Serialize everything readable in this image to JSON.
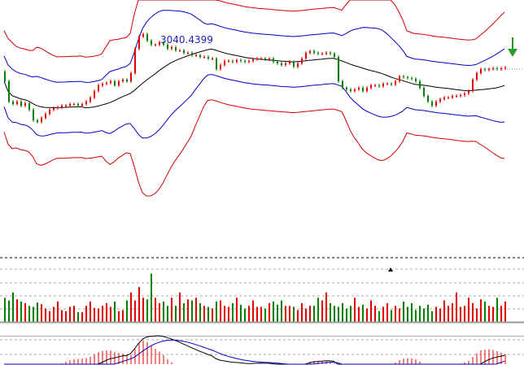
{
  "chart_data": {
    "type": "candlestick",
    "high_marker_label": "3040.4399",
    "indicators": [
      "bollinger",
      "volume",
      "macd"
    ],
    "colors": {
      "up": "#e00000",
      "down": "#008000",
      "ma": "#000000",
      "band_inner": "#0000c0",
      "band_outer": "#d00000",
      "arrow": "#2a9a2a"
    },
    "closes": [
      2987,
      2962,
      2959,
      2962,
      2957,
      2960,
      2952,
      2939,
      2937,
      2942,
      2947,
      2952,
      2954,
      2955,
      2957,
      2957,
      2959,
      2959,
      2957,
      2959,
      2962,
      2967,
      2975,
      2982,
      2984,
      2985,
      2987,
      2982,
      2987,
      2989,
      2987,
      2997,
      3027,
      3042,
      3045,
      3037,
      3032,
      3032,
      3035,
      3032,
      3027,
      3029,
      3025,
      3025,
      3022,
      3022,
      3019,
      3019,
      3017,
      3017,
      3015,
      3015,
      3002,
      3007,
      3012,
      3012,
      3011,
      3013,
      3012,
      3011,
      3012,
      3014,
      3015,
      3015,
      3014,
      3015,
      3011,
      3009,
      3007,
      3009,
      3011,
      3005,
      3009,
      3015,
      3022,
      3024,
      3022,
      3021,
      3021,
      3022,
      3021,
      3017,
      2987,
      2979,
      2977,
      2975,
      2977,
      2979,
      2975,
      2979,
      2982,
      2982,
      2981,
      2984,
      2984,
      2983,
      2987,
      2993,
      2992,
      2991,
      2990,
      2987,
      2979,
      2969,
      2962,
      2957,
      2962,
      2965,
      2967,
      2967,
      2969,
      2969,
      2970,
      2972,
      2975,
      2989,
      2997,
      3002,
      3001,
      3002,
      3003,
      3002,
      3003,
      3004
    ],
    "volumes": [
      45,
      40,
      55,
      42,
      38,
      35,
      30,
      28,
      36,
      33,
      25,
      20,
      28,
      38,
      22,
      20,
      28,
      30,
      18,
      18,
      30,
      38,
      26,
      25,
      30,
      35,
      28,
      38,
      20,
      22,
      40,
      55,
      40,
      65,
      45,
      42,
      90,
      45,
      35,
      38,
      30,
      45,
      30,
      55,
      35,
      42,
      40,
      45,
      35,
      30,
      28,
      25,
      38,
      40,
      30,
      28,
      35,
      45,
      32,
      25,
      30,
      40,
      28,
      28,
      25,
      35,
      38,
      32,
      40,
      30,
      30,
      28,
      22,
      35,
      25,
      30,
      30,
      45,
      40,
      55,
      35,
      30,
      28,
      35,
      25,
      30,
      45,
      28,
      32,
      25,
      40,
      30,
      20,
      28,
      35,
      22,
      30,
      25,
      38,
      28,
      35,
      22,
      30,
      25,
      32,
      20,
      28,
      25,
      40,
      30,
      35,
      55,
      28,
      30,
      45,
      35,
      25,
      42,
      38,
      30,
      28,
      45,
      30,
      38
    ],
    "volume_max": 100
  }
}
